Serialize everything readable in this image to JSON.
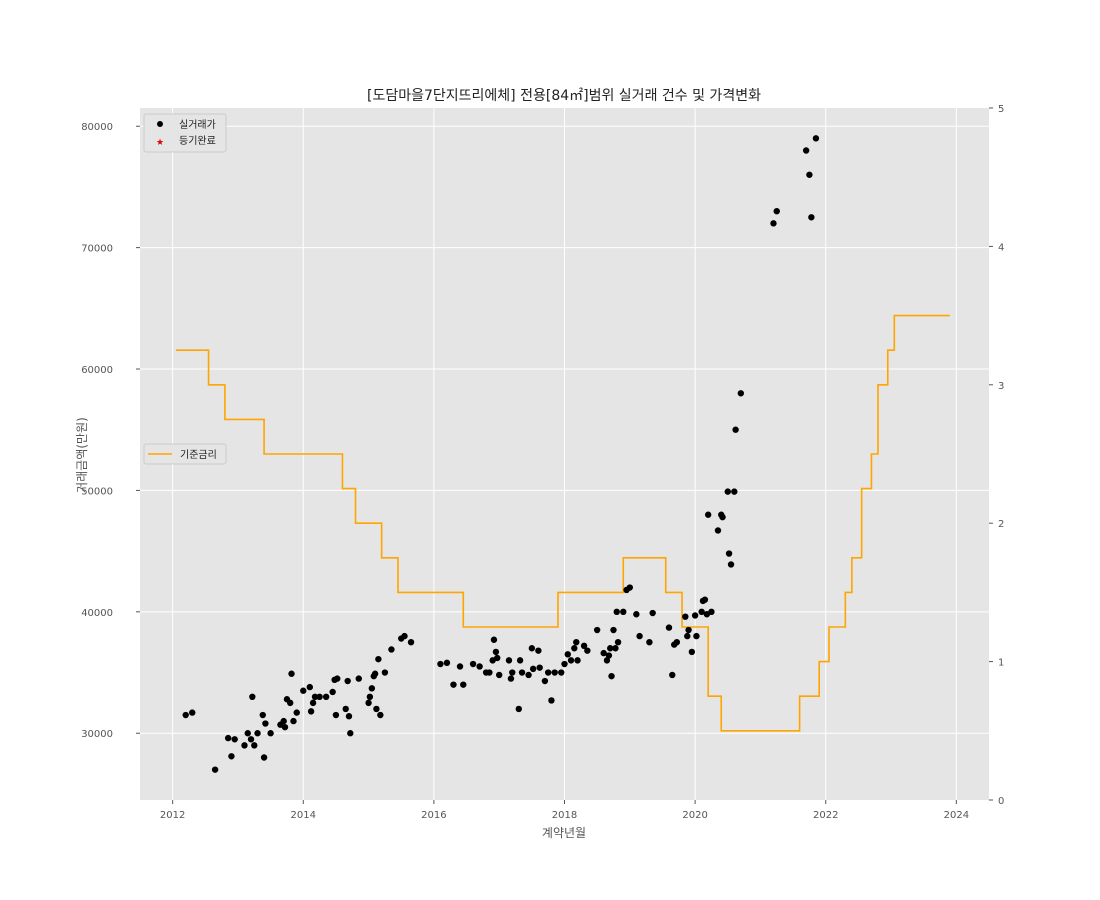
{
  "chart_data": {
    "type": "scatter",
    "title": "[도담마을7단지뜨리에체] 전용[84㎡]범위 실거래 건수 및 가격변화",
    "xlabel": "계약년월",
    "ylabel": "거래금액(만원)",
    "x_ticks": [
      "2012",
      "2014",
      "2016",
      "2018",
      "2020",
      "2022",
      "2024"
    ],
    "xlim": [
      2011.5,
      2024.5
    ],
    "y_ticks": [
      "30000",
      "40000",
      "50000",
      "60000",
      "70000",
      "80000"
    ],
    "ylim": [
      24500,
      81500
    ],
    "y2_ticks": [
      "0",
      "1",
      "2",
      "3",
      "4",
      "5"
    ],
    "y2lim": [
      0,
      5
    ],
    "grid": true,
    "legend_upper": [
      "실거래가",
      "등기완료"
    ],
    "legend_middle": [
      "기준금리"
    ],
    "colors": {
      "price": "#000000",
      "registered": "#e00000",
      "rate": "#ffa500",
      "background": "#e5e5e5"
    },
    "series": [
      {
        "name": "실거래가",
        "kind": "scatter",
        "points": [
          [
            2012.2,
            31500
          ],
          [
            2012.3,
            31700
          ],
          [
            2012.65,
            27000
          ],
          [
            2012.85,
            29600
          ],
          [
            2012.9,
            28100
          ],
          [
            2012.95,
            29500
          ],
          [
            2013.1,
            29000
          ],
          [
            2013.15,
            30000
          ],
          [
            2013.2,
            29500
          ],
          [
            2013.22,
            33000
          ],
          [
            2013.25,
            29000
          ],
          [
            2013.3,
            30000
          ],
          [
            2013.38,
            31500
          ],
          [
            2013.4,
            28000
          ],
          [
            2013.42,
            30800
          ],
          [
            2013.5,
            30000
          ],
          [
            2013.65,
            30700
          ],
          [
            2013.7,
            31000
          ],
          [
            2013.72,
            30500
          ],
          [
            2013.75,
            32800
          ],
          [
            2013.8,
            32500
          ],
          [
            2013.82,
            34900
          ],
          [
            2013.85,
            31000
          ],
          [
            2013.9,
            31700
          ],
          [
            2014.0,
            33500
          ],
          [
            2014.1,
            33800
          ],
          [
            2014.12,
            31800
          ],
          [
            2014.15,
            32500
          ],
          [
            2014.18,
            33000
          ],
          [
            2014.25,
            33000
          ],
          [
            2014.35,
            33000
          ],
          [
            2014.45,
            33400
          ],
          [
            2014.48,
            34400
          ],
          [
            2014.5,
            31500
          ],
          [
            2014.52,
            34500
          ],
          [
            2014.65,
            32000
          ],
          [
            2014.68,
            34300
          ],
          [
            2014.7,
            31400
          ],
          [
            2014.72,
            30000
          ],
          [
            2014.85,
            34500
          ],
          [
            2015.0,
            32500
          ],
          [
            2015.02,
            33000
          ],
          [
            2015.05,
            33700
          ],
          [
            2015.08,
            34700
          ],
          [
            2015.1,
            34900
          ],
          [
            2015.12,
            32000
          ],
          [
            2015.15,
            36100
          ],
          [
            2015.18,
            31500
          ],
          [
            2015.25,
            35000
          ],
          [
            2015.35,
            36900
          ],
          [
            2015.5,
            37800
          ],
          [
            2015.55,
            38000
          ],
          [
            2015.65,
            37500
          ],
          [
            2016.1,
            35700
          ],
          [
            2016.2,
            35800
          ],
          [
            2016.3,
            34000
          ],
          [
            2016.4,
            35500
          ],
          [
            2016.45,
            34000
          ],
          [
            2016.6,
            35700
          ],
          [
            2016.7,
            35500
          ],
          [
            2016.8,
            35000
          ],
          [
            2016.85,
            35000
          ],
          [
            2016.9,
            36000
          ],
          [
            2016.92,
            37700
          ],
          [
            2016.95,
            36700
          ],
          [
            2016.97,
            36200
          ],
          [
            2017.0,
            34800
          ],
          [
            2017.15,
            36000
          ],
          [
            2017.18,
            34500
          ],
          [
            2017.2,
            35000
          ],
          [
            2017.3,
            32000
          ],
          [
            2017.32,
            36000
          ],
          [
            2017.35,
            35000
          ],
          [
            2017.45,
            34800
          ],
          [
            2017.5,
            37000
          ],
          [
            2017.52,
            35300
          ],
          [
            2017.6,
            36800
          ],
          [
            2017.62,
            35400
          ],
          [
            2017.7,
            34300
          ],
          [
            2017.75,
            35000
          ],
          [
            2017.8,
            32700
          ],
          [
            2017.85,
            35000
          ],
          [
            2017.95,
            35000
          ],
          [
            2018.0,
            35700
          ],
          [
            2018.05,
            36500
          ],
          [
            2018.1,
            36000
          ],
          [
            2018.15,
            37000
          ],
          [
            2018.18,
            37500
          ],
          [
            2018.2,
            36000
          ],
          [
            2018.3,
            37200
          ],
          [
            2018.35,
            36800
          ],
          [
            2018.5,
            38500
          ],
          [
            2018.6,
            36600
          ],
          [
            2018.65,
            36000
          ],
          [
            2018.68,
            36400
          ],
          [
            2018.7,
            37000
          ],
          [
            2018.72,
            34700
          ],
          [
            2018.75,
            38500
          ],
          [
            2018.78,
            37000
          ],
          [
            2018.8,
            40000
          ],
          [
            2018.82,
            37500
          ],
          [
            2018.9,
            40000
          ],
          [
            2018.95,
            41800
          ],
          [
            2019.0,
            42000
          ],
          [
            2019.1,
            39800
          ],
          [
            2019.15,
            38000
          ],
          [
            2019.3,
            37500
          ],
          [
            2019.35,
            39900
          ],
          [
            2019.6,
            38700
          ],
          [
            2019.65,
            34800
          ],
          [
            2019.68,
            37300
          ],
          [
            2019.72,
            37500
          ],
          [
            2019.85,
            39600
          ],
          [
            2019.88,
            38000
          ],
          [
            2019.9,
            38500
          ],
          [
            2019.95,
            36700
          ],
          [
            2020.0,
            39700
          ],
          [
            2020.02,
            38000
          ],
          [
            2020.1,
            40000
          ],
          [
            2020.12,
            40900
          ],
          [
            2020.15,
            41000
          ],
          [
            2020.18,
            39800
          ],
          [
            2020.2,
            48000
          ],
          [
            2020.25,
            40000
          ],
          [
            2020.35,
            46700
          ],
          [
            2020.4,
            48000
          ],
          [
            2020.42,
            47800
          ],
          [
            2020.5,
            49900
          ],
          [
            2020.52,
            44800
          ],
          [
            2020.55,
            43900
          ],
          [
            2020.6,
            49900
          ],
          [
            2020.62,
            55000
          ],
          [
            2020.7,
            58000
          ],
          [
            2021.2,
            72000
          ],
          [
            2021.25,
            73000
          ],
          [
            2021.7,
            78000
          ],
          [
            2021.75,
            76000
          ],
          [
            2021.78,
            72500
          ],
          [
            2021.85,
            79000
          ]
        ]
      },
      {
        "name": "기준금리",
        "kind": "step",
        "steps": [
          [
            2012.05,
            3.25
          ],
          [
            2012.55,
            3.0
          ],
          [
            2012.8,
            2.75
          ],
          [
            2013.4,
            2.5
          ],
          [
            2014.6,
            2.25
          ],
          [
            2014.8,
            2.0
          ],
          [
            2015.2,
            1.75
          ],
          [
            2015.45,
            1.5
          ],
          [
            2016.45,
            1.25
          ],
          [
            2017.9,
            1.5
          ],
          [
            2018.9,
            1.75
          ],
          [
            2019.55,
            1.5
          ],
          [
            2019.8,
            1.25
          ],
          [
            2020.2,
            0.75
          ],
          [
            2020.4,
            0.5
          ],
          [
            2021.6,
            0.75
          ],
          [
            2021.9,
            1.0
          ],
          [
            2022.05,
            1.25
          ],
          [
            2022.3,
            1.5
          ],
          [
            2022.4,
            1.75
          ],
          [
            2022.55,
            2.25
          ],
          [
            2022.7,
            2.5
          ],
          [
            2022.8,
            3.0
          ],
          [
            2022.95,
            3.25
          ],
          [
            2023.05,
            3.5
          ],
          [
            2023.9,
            3.5
          ]
        ]
      }
    ]
  }
}
